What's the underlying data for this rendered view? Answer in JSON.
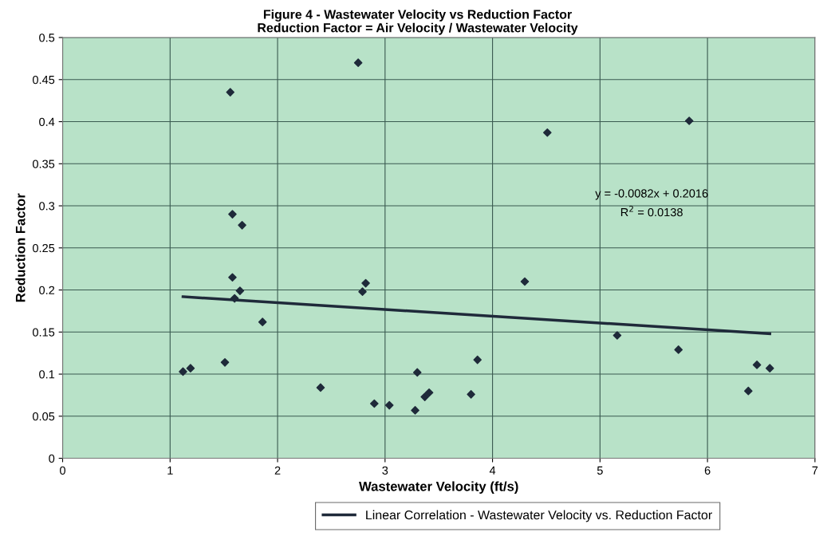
{
  "chart_data": {
    "type": "scatter",
    "title": "Figure 4 - Wastewater Velocity vs Reduction Factor",
    "subtitle": "Reduction Factor = Air Velocity / Wastewater Velocity",
    "xlabel": "Wastewater Velocity (ft/s)",
    "ylabel": "Reduction Factor",
    "x": [
      1.12,
      1.19,
      1.51,
      1.56,
      1.58,
      1.58,
      1.6,
      1.65,
      1.67,
      1.86,
      2.4,
      2.75,
      2.79,
      2.82,
      2.9,
      3.04,
      3.28,
      3.3,
      3.37,
      3.41,
      3.8,
      3.86,
      4.3,
      4.51,
      5.16,
      5.73,
      5.83,
      6.38,
      6.46,
      6.58
    ],
    "series": [
      {
        "color": "#1f2a3a",
        "marker": "diamond",
        "values": [
          0.103,
          0.107,
          0.114,
          0.435,
          0.29,
          0.215,
          0.19,
          0.199,
          0.277,
          0.162,
          0.084,
          0.47,
          0.198,
          0.208,
          0.065,
          0.063,
          0.057,
          0.102,
          0.073,
          0.078,
          0.076,
          0.117,
          0.21,
          0.387,
          0.146,
          0.129,
          0.401,
          0.08,
          0.111,
          0.107
        ]
      },
      {
        "type": "line",
        "name": "Linear Correlation - Wastewater Velocity vs. Reduction Factor",
        "color": "#1f2a3a",
        "marker": "none",
        "line_style": "solid",
        "x": [
          1.12,
          6.58
        ],
        "values": [
          0.192,
          0.148
        ]
      }
    ],
    "annotations": [
      "y = -0.0082x + 0.2016",
      "R$^{2}$ = 0.0138"
    ],
    "xlim": [
      0,
      7
    ],
    "xticks": [
      0,
      1,
      2,
      3,
      4,
      5,
      6,
      7
    ],
    "ylim": [
      0,
      0.5
    ],
    "yticks": [
      0,
      0.05,
      0.1,
      0.15,
      0.2,
      0.25,
      0.3,
      0.35,
      0.4,
      0.45,
      0.5
    ],
    "grid": true,
    "legend": "bottom"
  }
}
